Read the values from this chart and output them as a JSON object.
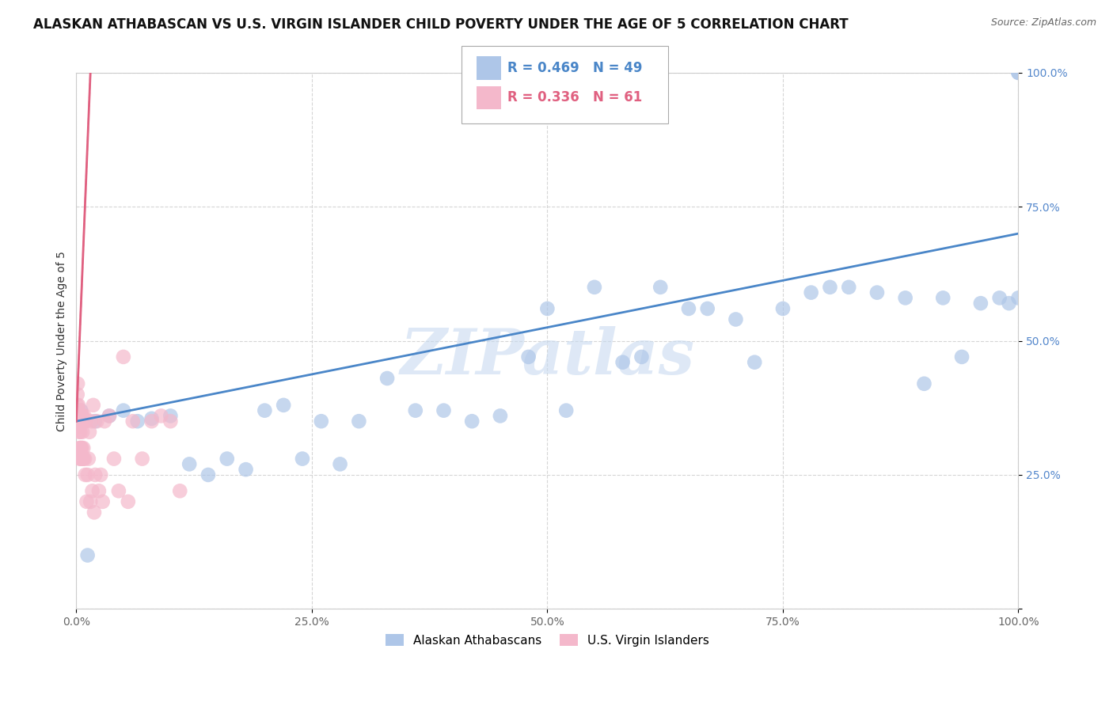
{
  "title": "ALASKAN ATHABASCAN VS U.S. VIRGIN ISLANDER CHILD POVERTY UNDER THE AGE OF 5 CORRELATION CHART",
  "source": "Source: ZipAtlas.com",
  "ylabel": "Child Poverty Under the Age of 5",
  "blue_R": 0.469,
  "blue_N": 49,
  "pink_R": 0.336,
  "pink_N": 61,
  "blue_color": "#aec6e8",
  "pink_color": "#f4b8cb",
  "blue_line_color": "#4a86c8",
  "pink_line_color": "#e06080",
  "watermark": "ZIPatlas",
  "watermark_color": "#c8daf0",
  "legend_entries": [
    "Alaskan Athabascans",
    "U.S. Virgin Islanders"
  ],
  "title_fontsize": 12,
  "label_fontsize": 10,
  "tick_fontsize": 10,
  "bg_color": "#ffffff",
  "grid_color": "#cccccc",
  "blue_x": [
    0.5,
    1.2,
    2.0,
    3.5,
    5.0,
    6.5,
    8.0,
    10.0,
    12.0,
    14.0,
    16.0,
    18.0,
    20.0,
    22.0,
    24.0,
    26.0,
    28.0,
    30.0,
    33.0,
    36.0,
    39.0,
    42.0,
    45.0,
    48.0,
    50.0,
    52.0,
    55.0,
    58.0,
    60.0,
    62.0,
    65.0,
    67.0,
    70.0,
    72.0,
    75.0,
    78.0,
    80.0,
    82.0,
    85.0,
    88.0,
    90.0,
    92.0,
    94.0,
    96.0,
    98.0,
    99.0,
    100.0,
    100.0,
    100.0
  ],
  "blue_y": [
    37.0,
    10.0,
    35.0,
    36.0,
    37.0,
    35.0,
    35.5,
    36.0,
    27.0,
    25.0,
    28.0,
    26.0,
    37.0,
    38.0,
    28.0,
    35.0,
    27.0,
    35.0,
    43.0,
    37.0,
    37.0,
    35.0,
    36.0,
    47.0,
    56.0,
    37.0,
    60.0,
    46.0,
    47.0,
    60.0,
    56.0,
    56.0,
    54.0,
    46.0,
    56.0,
    59.0,
    60.0,
    60.0,
    59.0,
    58.0,
    42.0,
    58.0,
    47.0,
    57.0,
    58.0,
    57.0,
    100.0,
    100.0,
    58.0
  ],
  "pink_x": [
    0.05,
    0.08,
    0.1,
    0.12,
    0.15,
    0.18,
    0.2,
    0.22,
    0.25,
    0.28,
    0.3,
    0.32,
    0.35,
    0.38,
    0.4,
    0.42,
    0.45,
    0.48,
    0.5,
    0.52,
    0.55,
    0.58,
    0.6,
    0.63,
    0.65,
    0.68,
    0.7,
    0.73,
    0.75,
    0.78,
    0.8,
    0.85,
    0.9,
    0.95,
    1.0,
    1.1,
    1.2,
    1.3,
    1.4,
    1.5,
    1.6,
    1.7,
    1.8,
    1.9,
    2.0,
    2.2,
    2.4,
    2.6,
    2.8,
    3.0,
    3.5,
    4.0,
    4.5,
    5.0,
    5.5,
    6.0,
    7.0,
    8.0,
    9.0,
    10.0,
    11.0
  ],
  "pink_y": [
    35.0,
    38.0,
    36.0,
    40.0,
    42.0,
    37.0,
    35.0,
    38.0,
    34.0,
    36.0,
    30.0,
    33.0,
    28.0,
    35.0,
    37.0,
    33.0,
    30.0,
    28.0,
    36.0,
    30.0,
    28.0,
    35.0,
    30.0,
    36.0,
    33.0,
    36.0,
    28.0,
    35.0,
    30.0,
    28.0,
    35.0,
    36.0,
    28.0,
    25.0,
    35.0,
    20.0,
    25.0,
    28.0,
    33.0,
    20.0,
    35.0,
    22.0,
    38.0,
    18.0,
    25.0,
    35.0,
    22.0,
    25.0,
    20.0,
    35.0,
    36.0,
    28.0,
    22.0,
    47.0,
    20.0,
    35.0,
    28.0,
    35.0,
    36.0,
    35.0,
    22.0
  ]
}
